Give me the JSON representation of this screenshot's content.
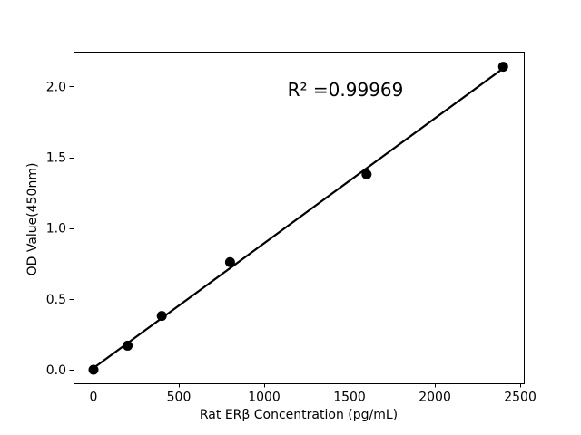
{
  "figure": {
    "background_color": "#ffffff"
  },
  "chart_data": {
    "type": "scatter",
    "xlabel": "Rat ERβ Concentration (pg/mL)",
    "ylabel": "OD Value(450nm)",
    "x": [
      0,
      200,
      400,
      800,
      1600,
      2400
    ],
    "y": [
      0.0,
      0.17,
      0.38,
      0.76,
      1.38,
      2.14
    ],
    "trendline": {
      "kind": "linear-fit",
      "x1": 0,
      "y1": 0.012,
      "x2": 2400,
      "y2": 2.128
    },
    "annotation": {
      "text": "R² =0.99969",
      "x": 1476,
      "y": 1.98
    },
    "xticks": [
      0,
      500,
      1000,
      1500,
      2000,
      2500
    ],
    "yticks": [
      0.0,
      0.5,
      1.0,
      1.5,
      2.0
    ],
    "xlim": [
      -117,
      2521
    ],
    "ylim": [
      -0.096,
      2.246
    ],
    "grid": false,
    "legend": "none",
    "marker_color": "#000000",
    "line_color": "#000000",
    "text_color": "#000000"
  }
}
